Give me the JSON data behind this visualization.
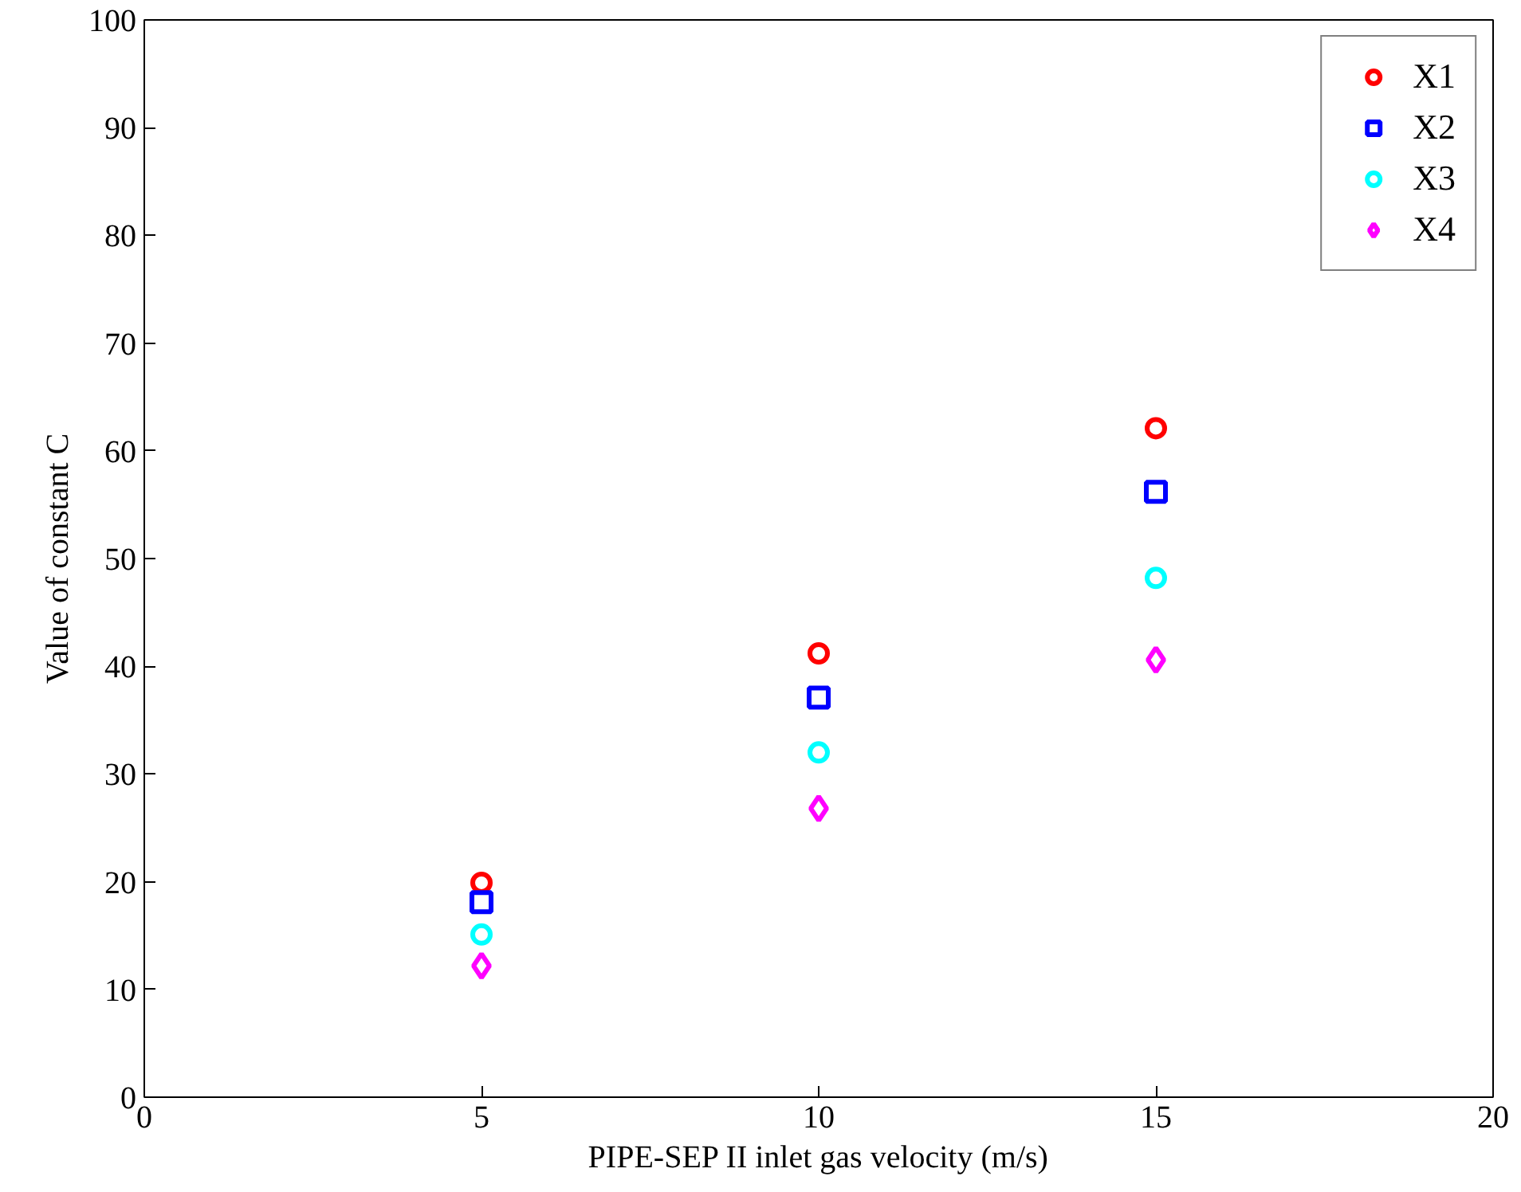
{
  "chart_data": {
    "type": "scatter",
    "xlabel": "PIPE-SEP II inlet gas velocity (m/s)",
    "ylabel": "Value of constant C",
    "x": [
      5,
      10,
      15
    ],
    "series": [
      {
        "name": "X1",
        "color": "#ff0000",
        "marker": "circle",
        "values": [
          19.9,
          41.2,
          62.1
        ]
      },
      {
        "name": "X2",
        "color": "#0000ff",
        "marker": "square",
        "values": [
          18.1,
          37.1,
          56.2
        ]
      },
      {
        "name": "X3",
        "color": "#00ffff",
        "marker": "circle",
        "values": [
          15.1,
          32.0,
          48.2
        ]
      },
      {
        "name": "X4",
        "color": "#ff00ff",
        "marker": "diamond",
        "values": [
          12.2,
          26.8,
          40.6
        ]
      }
    ],
    "xlim": [
      0,
      20
    ],
    "xticks": [
      0,
      5,
      10,
      15,
      20
    ],
    "ylim": [
      0,
      100
    ],
    "yticks": [
      0,
      10,
      20,
      30,
      40,
      50,
      60,
      70,
      80,
      90,
      100
    ],
    "grid": false,
    "legend": "top right"
  }
}
